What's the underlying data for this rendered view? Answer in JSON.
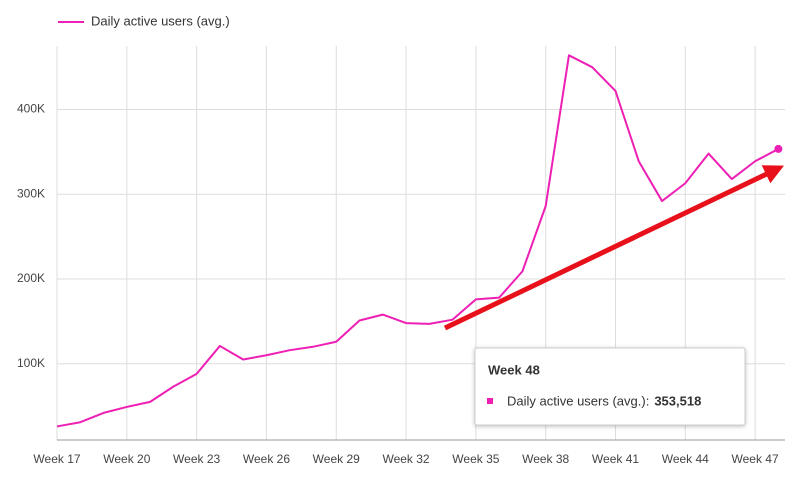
{
  "chart_data": {
    "type": "line",
    "categories": [
      "Week 17",
      null,
      null,
      "Week 20",
      null,
      null,
      "Week 23",
      null,
      null,
      "Week 26",
      null,
      null,
      "Week 29",
      null,
      null,
      "Week 32",
      null,
      null,
      "Week 35",
      null,
      null,
      "Week 38",
      null,
      null,
      "Week 41",
      null,
      null,
      "Week 44",
      null,
      null,
      "Week 47",
      null
    ],
    "series": [
      {
        "name": "Daily active users (avg.)",
        "color": "#ee1fb4",
        "values": [
          26000,
          31000,
          42000,
          49000,
          55000,
          73000,
          88000,
          121000,
          105000,
          110000,
          116000,
          120000,
          126000,
          151000,
          158000,
          148000,
          147000,
          152000,
          176000,
          178000,
          209000,
          286000,
          464000,
          450000,
          422000,
          339000,
          292000,
          313000,
          348000,
          318000,
          339000,
          353518
        ]
      }
    ],
    "ylim": [
      10000,
      475000
    ],
    "yticks": [
      {
        "value": 100000,
        "label": "100K"
      },
      {
        "value": 200000,
        "label": "200K"
      },
      {
        "value": 300000,
        "label": "300K"
      },
      {
        "value": 400000,
        "label": "400K"
      }
    ],
    "grid": true,
    "legend": "top-left",
    "tooltip": {
      "title": "Week 48",
      "series_label": "Daily active users (avg.):",
      "value_label": "353,518"
    }
  }
}
